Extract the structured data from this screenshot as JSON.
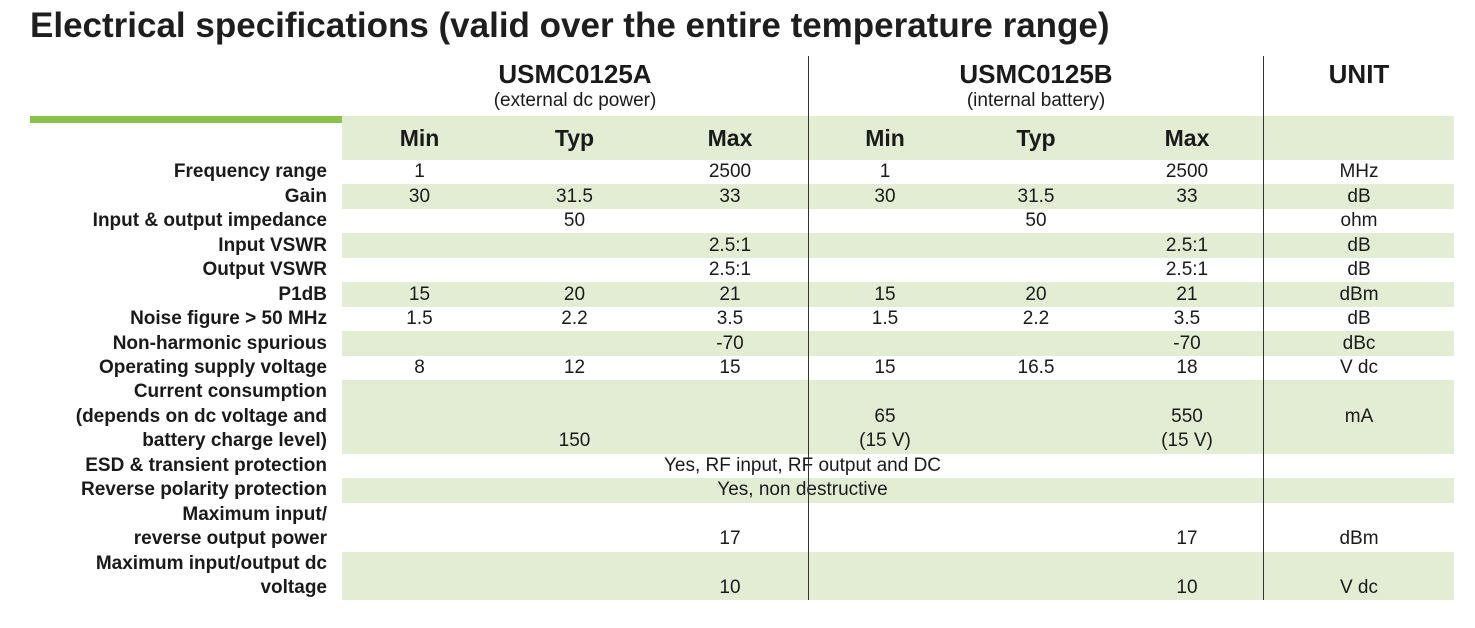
{
  "title": "Electrical specifications (valid over the entire temperature range)",
  "products": [
    {
      "name": "USMC0125A",
      "sub": "(external dc power)"
    },
    {
      "name": "USMC0125B",
      "sub": "(internal battery)"
    }
  ],
  "unit_header": "UNIT",
  "col_headers": [
    "Min",
    "Typ",
    "Max",
    "Min",
    "Typ",
    "Max"
  ],
  "rows": [
    {
      "label": "Frequency range",
      "a_min": "1",
      "a_typ": "",
      "a_max": "2500",
      "b_min": "1",
      "b_typ": "",
      "b_max": "2500",
      "unit": "MHz"
    },
    {
      "label": "Gain",
      "a_min": "30",
      "a_typ": "31.5",
      "a_max": "33",
      "b_min": "30",
      "b_typ": "31.5",
      "b_max": "33",
      "unit": "dB"
    },
    {
      "label": "Input & output impedance",
      "a_min": "",
      "a_typ": "50",
      "a_max": "",
      "b_min": "",
      "b_typ": "50",
      "b_max": "",
      "unit": "ohm"
    },
    {
      "label": "Input VSWR",
      "a_min": "",
      "a_typ": "",
      "a_max": "2.5:1",
      "b_min": "",
      "b_typ": "",
      "b_max": "2.5:1",
      "unit": "dB"
    },
    {
      "label": "Output VSWR",
      "a_min": "",
      "a_typ": "",
      "a_max": "2.5:1",
      "b_min": "",
      "b_typ": "",
      "b_max": "2.5:1",
      "unit": "dB"
    },
    {
      "label": "P1dB",
      "a_min": "15",
      "a_typ": "20",
      "a_max": "21",
      "b_min": "15",
      "b_typ": "20",
      "b_max": "21",
      "unit": "dBm"
    },
    {
      "label": "Noise figure > 50 MHz",
      "a_min": "1.5",
      "a_typ": "2.2",
      "a_max": "3.5",
      "b_min": "1.5",
      "b_typ": "2.2",
      "b_max": "3.5",
      "unit": "dB"
    },
    {
      "label": "Non-harmonic spurious",
      "a_min": "",
      "a_typ": "",
      "a_max": "-70",
      "b_min": "",
      "b_typ": "",
      "b_max": "-70",
      "unit": "dBc"
    },
    {
      "label": "Operating supply voltage",
      "a_min": "8",
      "a_typ": "12",
      "a_max": "15",
      "b_min": "15",
      "b_typ": "16.5",
      "b_max": "18",
      "unit": "V dc"
    }
  ],
  "current": {
    "label_lines": [
      "Current consumption",
      "(depends on dc voltage and",
      "battery charge level)"
    ],
    "a_typ": "150",
    "b_min": "65",
    "b_min_note": "(15 V)",
    "b_max": "550",
    "b_max_note": "(15 V)",
    "unit": "mA"
  },
  "esd": {
    "label": "ESD & transient protection",
    "value": "Yes, RF input, RF output and DC"
  },
  "reverse": {
    "label": "Reverse polarity protection",
    "value": "Yes, non destructive"
  },
  "max_power": {
    "label_lines": [
      "Maximum input/",
      "reverse output power"
    ],
    "a_max": "17",
    "b_max": "17",
    "unit": "dBm"
  },
  "max_voltage": {
    "label_lines": [
      "Maximum input/output dc",
      "voltage"
    ],
    "a_max": "10",
    "b_max": "10",
    "unit": "V dc"
  }
}
